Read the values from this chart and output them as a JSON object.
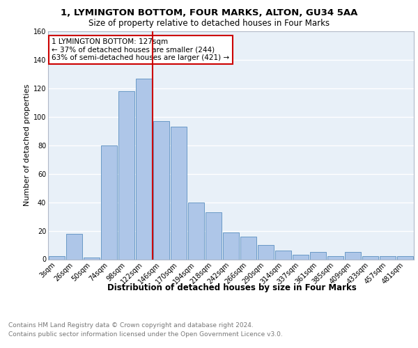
{
  "title": "1, LYMINGTON BOTTOM, FOUR MARKS, ALTON, GU34 5AA",
  "subtitle": "Size of property relative to detached houses in Four Marks",
  "xlabel": "Distribution of detached houses by size in Four Marks",
  "ylabel": "Number of detached properties",
  "bar_color": "#aec6e8",
  "bar_edge_color": "#5a8fc0",
  "categories": [
    "3sqm",
    "26sqm",
    "50sqm",
    "74sqm",
    "98sqm",
    "122sqm",
    "146sqm",
    "170sqm",
    "194sqm",
    "218sqm",
    "242sqm",
    "266sqm",
    "290sqm",
    "314sqm",
    "337sqm",
    "361sqm",
    "385sqm",
    "409sqm",
    "433sqm",
    "457sqm",
    "481sqm"
  ],
  "values": [
    2,
    18,
    1,
    80,
    118,
    127,
    97,
    93,
    40,
    33,
    19,
    16,
    10,
    6,
    3,
    5,
    2,
    5,
    2,
    2,
    2
  ],
  "vline_x_index": 5.5,
  "vline_color": "#cc0000",
  "annotation_text": "1 LYMINGTON BOTTOM: 127sqm\n← 37% of detached houses are smaller (244)\n63% of semi-detached houses are larger (421) →",
  "annotation_box_color": "white",
  "annotation_box_edge": "#cc0000",
  "ylim": [
    0,
    160
  ],
  "yticks": [
    0,
    20,
    40,
    60,
    80,
    100,
    120,
    140,
    160
  ],
  "footer_line1": "Contains HM Land Registry data © Crown copyright and database right 2024.",
  "footer_line2": "Contains public sector information licensed under the Open Government Licence v3.0.",
  "background_color": "#e8f0f8",
  "grid_color": "white",
  "fig_bg": "white",
  "title_fontsize": 9.5,
  "subtitle_fontsize": 8.5,
  "ylabel_fontsize": 8,
  "xlabel_fontsize": 8.5,
  "tick_fontsize": 7,
  "footer_fontsize": 6.5,
  "ann_fontsize": 7.5
}
